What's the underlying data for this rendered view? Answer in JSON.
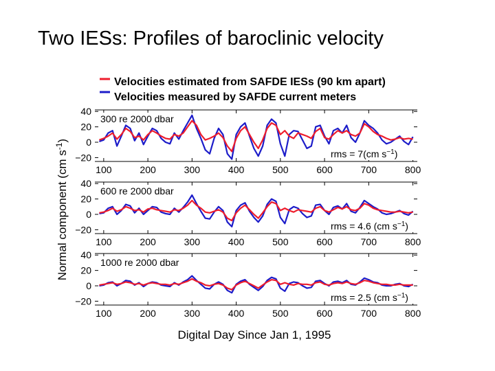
{
  "slide": {
    "title": "Two IESs:  Profiles of baroclinic velocity"
  },
  "chart_data": {
    "type": "line",
    "title": "",
    "xlabel": "Digital Day Since Jan 1, 1995",
    "ylabel": "Normal component (cm s",
    "ylabel_sup": "-1",
    "ylabel_close": ")",
    "xlim": [
      80,
      810
    ],
    "ylim": [
      -25,
      42
    ],
    "xticks": [
      100,
      200,
      300,
      400,
      500,
      600,
      700,
      800
    ],
    "yticks": [
      40,
      20,
      0,
      -20
    ],
    "ytick_labels": [
      "40",
      "20",
      "0",
      "−20"
    ],
    "grid": false,
    "legend_position": "top",
    "series": [
      {
        "name": "Velocities estimated from SAFDE IESs (90 km apart)",
        "color": "#ee1d2c"
      },
      {
        "name": "Velocities measured by SAFDE current meters",
        "color": "#1c1cc9"
      }
    ],
    "panels": [
      {
        "label": "300 re 2000 dbar",
        "rms_prefix": "rms = 7(cm s",
        "rms_sup": "−1",
        "rms_suffix": ")",
        "x": [
          90,
          100,
          110,
          120,
          130,
          140,
          150,
          160,
          170,
          180,
          190,
          200,
          210,
          220,
          230,
          240,
          250,
          260,
          270,
          280,
          290,
          300,
          310,
          320,
          330,
          340,
          350,
          360,
          370,
          380,
          390,
          400,
          410,
          420,
          430,
          440,
          450,
          460,
          470,
          480,
          490,
          500,
          510,
          520,
          530,
          540,
          550,
          560,
          570,
          580,
          590,
          600,
          610,
          620,
          630,
          640,
          650,
          660,
          670,
          680,
          690,
          700,
          710,
          720,
          730,
          740,
          750,
          760,
          770,
          780,
          790,
          800
        ],
        "estimated": [
          3,
          5,
          8,
          12,
          4,
          10,
          18,
          14,
          6,
          8,
          3,
          10,
          15,
          12,
          8,
          5,
          4,
          10,
          8,
          12,
          20,
          28,
          22,
          10,
          3,
          5,
          8,
          12,
          6,
          -5,
          -12,
          5,
          15,
          20,
          10,
          0,
          -8,
          3,
          18,
          25,
          22,
          10,
          15,
          8,
          5,
          12,
          10,
          8,
          5,
          14,
          18,
          6,
          4,
          10,
          15,
          12,
          15,
          10,
          8,
          12,
          24,
          20,
          14,
          10,
          8,
          5,
          3,
          4,
          6,
          4,
          5,
          4
        ],
        "measured": [
          1,
          3,
          12,
          15,
          -5,
          8,
          22,
          18,
          2,
          12,
          -3,
          8,
          18,
          15,
          5,
          0,
          -2,
          12,
          4,
          15,
          25,
          35,
          18,
          5,
          -10,
          -15,
          5,
          18,
          10,
          -15,
          -22,
          10,
          20,
          25,
          8,
          -8,
          -18,
          -5,
          22,
          30,
          25,
          -2,
          -18,
          10,
          15,
          14,
          3,
          -8,
          -5,
          20,
          22,
          8,
          -2,
          15,
          18,
          12,
          22,
          6,
          0,
          12,
          28,
          22,
          18,
          12,
          3,
          -2,
          0,
          4,
          8,
          1,
          -3,
          7
        ]
      },
      {
        "label": "600 re 2000 dbar",
        "rms_prefix": "rms = 4.6 (cm s",
        "rms_sup": "−1",
        "rms_suffix": ")",
        "x": [
          90,
          100,
          110,
          120,
          130,
          140,
          150,
          160,
          170,
          180,
          190,
          200,
          210,
          220,
          230,
          240,
          250,
          260,
          270,
          280,
          290,
          300,
          310,
          320,
          330,
          340,
          350,
          360,
          370,
          380,
          390,
          400,
          410,
          420,
          430,
          440,
          450,
          460,
          470,
          480,
          490,
          500,
          510,
          520,
          530,
          540,
          550,
          560,
          570,
          580,
          590,
          600,
          610,
          620,
          630,
          640,
          650,
          660,
          670,
          680,
          690,
          700,
          710,
          720,
          730,
          740,
          750,
          760,
          770,
          780,
          790,
          800
        ],
        "estimated": [
          2,
          3,
          5,
          8,
          4,
          6,
          10,
          8,
          5,
          6,
          3,
          7,
          8,
          6,
          5,
          4,
          3,
          6,
          5,
          8,
          12,
          18,
          12,
          8,
          3,
          2,
          4,
          6,
          3,
          -5,
          -8,
          2,
          8,
          12,
          6,
          0,
          -5,
          2,
          10,
          16,
          14,
          5,
          8,
          5,
          3,
          6,
          5,
          4,
          3,
          8,
          10,
          5,
          3,
          6,
          9,
          7,
          10,
          6,
          5,
          8,
          14,
          12,
          8,
          6,
          5,
          4,
          3,
          3,
          4,
          3,
          2,
          3
        ],
        "measured": [
          1,
          2,
          8,
          10,
          0,
          5,
          13,
          11,
          2,
          8,
          0,
          5,
          10,
          9,
          3,
          1,
          0,
          8,
          3,
          9,
          16,
          25,
          14,
          4,
          -5,
          -6,
          3,
          10,
          5,
          -10,
          -16,
          5,
          12,
          15,
          4,
          -4,
          -10,
          -2,
          13,
          20,
          17,
          -4,
          -12,
          6,
          10,
          8,
          1,
          -4,
          -2,
          12,
          13,
          5,
          0,
          9,
          11,
          7,
          14,
          4,
          2,
          9,
          18,
          14,
          10,
          7,
          2,
          0,
          1,
          3,
          5,
          1,
          -1,
          4
        ]
      },
      {
        "label": "1000 re 2000 dbar",
        "rms_prefix": "rms = 2.5 (cm s",
        "rms_sup": "−1",
        "rms_suffix": ")",
        "x": [
          90,
          100,
          110,
          120,
          130,
          140,
          150,
          160,
          170,
          180,
          190,
          200,
          210,
          220,
          230,
          240,
          250,
          260,
          270,
          280,
          290,
          300,
          310,
          320,
          330,
          340,
          350,
          360,
          370,
          380,
          390,
          400,
          410,
          420,
          430,
          440,
          450,
          460,
          470,
          480,
          490,
          500,
          510,
          520,
          530,
          540,
          550,
          560,
          570,
          580,
          590,
          600,
          610,
          620,
          630,
          640,
          650,
          660,
          670,
          680,
          690,
          700,
          710,
          720,
          730,
          740,
          750,
          760,
          770,
          780,
          790,
          800
        ],
        "estimated": [
          1,
          2,
          3,
          4,
          2,
          3,
          5,
          4,
          2,
          3,
          1,
          3,
          4,
          3,
          2,
          2,
          1,
          3,
          2,
          4,
          6,
          9,
          6,
          4,
          1,
          0,
          2,
          3,
          1,
          -3,
          -5,
          1,
          4,
          6,
          3,
          0,
          -3,
          1,
          5,
          8,
          7,
          2,
          4,
          2,
          1,
          3,
          2,
          2,
          1,
          4,
          5,
          2,
          1,
          3,
          4,
          3,
          5,
          3,
          2,
          4,
          7,
          6,
          4,
          3,
          2,
          2,
          1,
          1,
          2,
          1,
          1,
          1
        ],
        "measured": [
          0,
          1,
          4,
          5,
          0,
          3,
          7,
          6,
          1,
          4,
          -1,
          3,
          5,
          4,
          1,
          0,
          -1,
          4,
          1,
          5,
          8,
          13,
          7,
          2,
          -3,
          -4,
          2,
          5,
          2,
          -6,
          -9,
          2,
          6,
          8,
          2,
          -2,
          -6,
          -1,
          7,
          11,
          9,
          -3,
          -7,
          3,
          5,
          4,
          0,
          -3,
          -2,
          6,
          7,
          3,
          0,
          5,
          6,
          4,
          7,
          2,
          1,
          5,
          10,
          8,
          5,
          4,
          1,
          0,
          0,
          2,
          3,
          0,
          -1,
          2
        ]
      }
    ]
  }
}
